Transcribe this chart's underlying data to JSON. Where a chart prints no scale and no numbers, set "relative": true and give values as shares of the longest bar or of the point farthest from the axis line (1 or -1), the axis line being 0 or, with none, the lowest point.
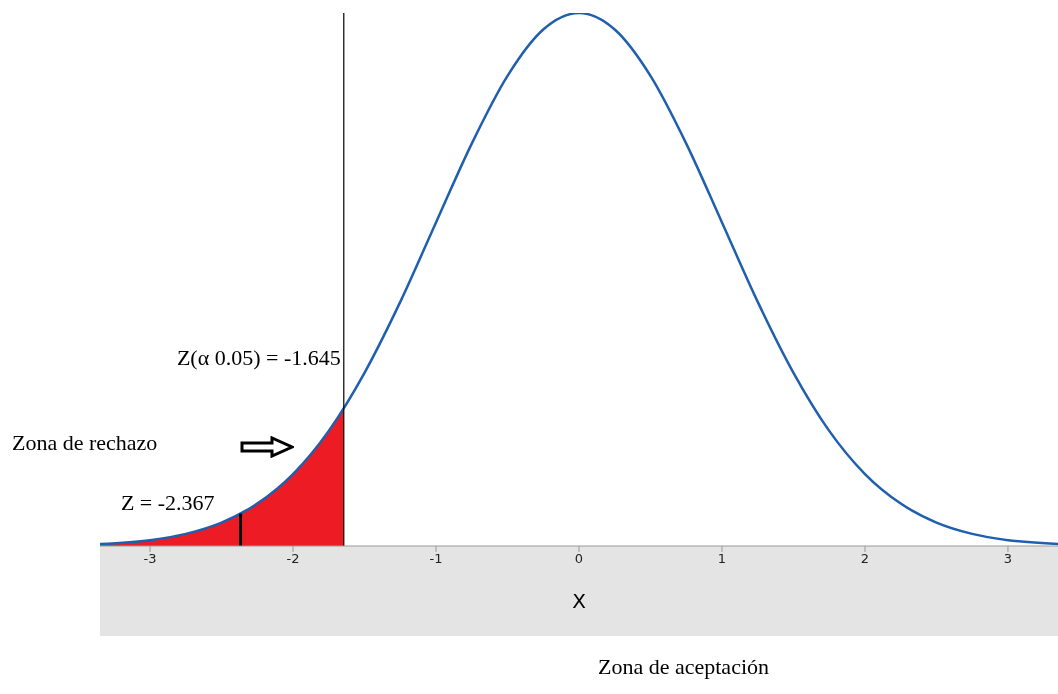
{
  "chart_data": {
    "type": "line",
    "relative": true,
    "xlabel": "X",
    "xlim": [
      -3.35,
      3.35
    ],
    "xticks": [
      -3,
      -2,
      -1,
      0,
      1,
      2,
      3
    ],
    "marker": "none",
    "line_style": "solid",
    "series": [
      {
        "type": "area",
        "color": "#ed1c24",
        "x": [
          -3.35,
          -3,
          -2.75,
          -2.5,
          -2.367,
          -2.25,
          -2,
          -1.75,
          -1.645
        ],
        "values": [
          0.0036,
          0.011,
          0.0228,
          0.044,
          0.0607,
          0.0796,
          0.135,
          0.216,
          0.2585
        ]
      },
      {
        "color": "#1f5fae",
        "x": [
          -3.35,
          -3,
          -2.75,
          -2.5,
          -2.25,
          -2,
          -1.75,
          -1.5,
          -1.25,
          -1,
          -0.75,
          -0.5,
          -0.25,
          0,
          0.25,
          0.5,
          0.75,
          1,
          1.25,
          1.5,
          1.75,
          2,
          2.25,
          2.5,
          2.75,
          3,
          3.35
        ],
        "values": [
          0.0036,
          0.011,
          0.0228,
          0.044,
          0.0796,
          0.135,
          0.216,
          0.325,
          0.458,
          0.607,
          0.755,
          0.882,
          0.969,
          1,
          0.969,
          0.882,
          0.755,
          0.607,
          0.458,
          0.325,
          0.216,
          0.135,
          0.0796,
          0.044,
          0.0228,
          0.011,
          0.0036
        ]
      },
      {
        "name": "Z = -2.367",
        "color": "#000000",
        "x": [
          -2.367,
          -2.367
        ],
        "values": [
          0,
          0.0607
        ]
      }
    ],
    "ref_lines": [
      {
        "axis": "x",
        "value": -1.645,
        "label": "Z(α 0.05) = -1.645",
        "color": "#000000"
      }
    ],
    "annotations": [
      "Zona de rechazo",
      "Zona de aceptación"
    ]
  }
}
